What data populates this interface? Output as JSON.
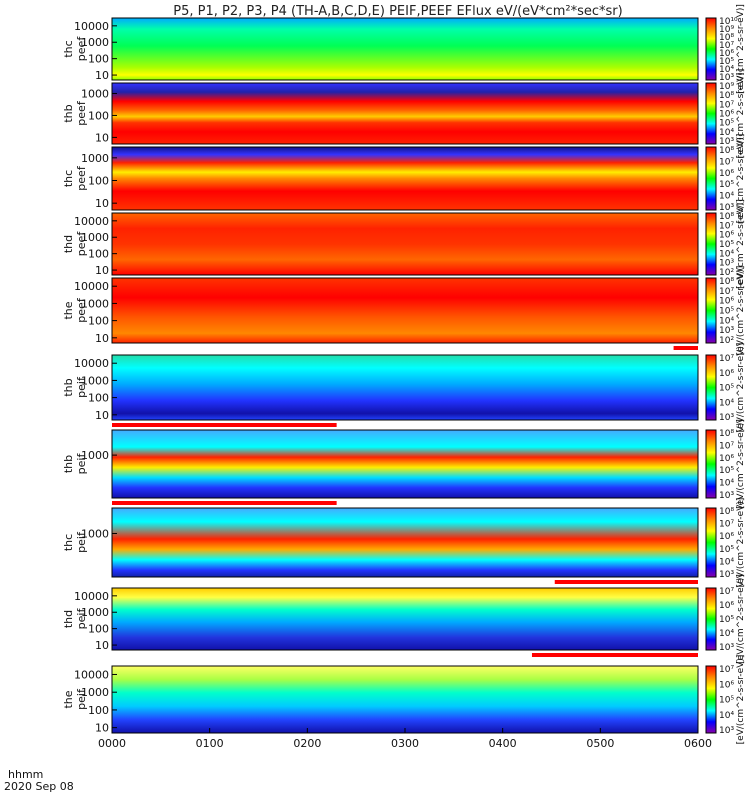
{
  "title": "P5, P1, P2, P3, P4 (TH-A,B,C,D,E) PEIF,PEEF EFlux eV/(eV*cm²*sec*sr)",
  "time_label": "hhmm",
  "date_label": "2020 Sep 08",
  "colors": {
    "state_bar": "#ff0000",
    "frame": "#000000"
  },
  "chart_data": {
    "type": "heatmap",
    "x_ticks": [
      "0000",
      "0100",
      "0200",
      "0300",
      "0400",
      "0500",
      "0600"
    ],
    "xlim": [
      "0000",
      "0600"
    ],
    "colorbar_palette": [
      "#8800aa",
      "#0000ff",
      "#00ffff",
      "#00ff00",
      "#ffff00",
      "#ff8800",
      "#ff0000"
    ],
    "panels": [
      {
        "name": "thc peef",
        "label_line1": "thc",
        "label_line2": "peef",
        "y_ticks": [
          "10",
          "100",
          "1000",
          "10000"
        ],
        "ylim": [
          5,
          30000
        ],
        "scale": "log",
        "colorbar_ticks": [
          "10³",
          "10⁴",
          "10⁵",
          "10⁶",
          "10⁷",
          "10⁸",
          "10⁹",
          "10¹⁰"
        ],
        "colorbar_label": "[eV/(cm^2-s-sr-eV)]",
        "state_bar": false
      },
      {
        "name": "thb peef",
        "label_line1": "thb",
        "label_line2": "peef",
        "y_ticks": [
          "10",
          "100",
          "1000"
        ],
        "ylim": [
          5,
          3000
        ],
        "scale": "log",
        "colorbar_ticks": [
          "10³",
          "10⁴",
          "10⁵",
          "10⁶",
          "10⁷",
          "10⁸",
          "10⁹"
        ],
        "colorbar_label": "[eV/(cm^2-s-sr-eV)]",
        "state_bar": false
      },
      {
        "name": "thc peef",
        "label_line1": "thc",
        "label_line2": "peef",
        "y_ticks": [
          "10",
          "100",
          "1000"
        ],
        "ylim": [
          5,
          3000
        ],
        "scale": "log",
        "colorbar_ticks": [
          "10³",
          "10⁴",
          "10⁵",
          "10⁶",
          "10⁷",
          "10⁸"
        ],
        "colorbar_label": "[eV/(cm^2-s-sr-eV)]",
        "state_bar": false
      },
      {
        "name": "thd peef",
        "label_line1": "thd",
        "label_line2": "peef",
        "y_ticks": [
          "10",
          "100",
          "1000",
          "10000"
        ],
        "ylim": [
          5,
          30000
        ],
        "scale": "log",
        "colorbar_ticks": [
          "10²",
          "10³",
          "10⁴",
          "10⁵",
          "10⁶",
          "10⁷",
          "10⁸"
        ],
        "colorbar_label": "[eV/(cm^2-s-sr-eV)]",
        "state_bar": false
      },
      {
        "name": "the peef",
        "label_line1": "the",
        "label_line2": "peef",
        "y_ticks": [
          "10",
          "100",
          "1000",
          "10000"
        ],
        "ylim": [
          5,
          30000
        ],
        "scale": "log",
        "colorbar_ticks": [
          "10²",
          "10³",
          "10⁴",
          "10⁵",
          "10⁶",
          "10⁷",
          "10⁸"
        ],
        "colorbar_label": "[eV/(cm^2-s-sr-eV)]",
        "state_bar": true,
        "state_bar_range": [
          "0545",
          "0600"
        ]
      },
      {
        "name": "thb peif",
        "label_line1": "thb",
        "label_line2": "peif",
        "y_ticks": [
          "10",
          "100",
          "1000",
          "10000"
        ],
        "ylim": [
          5,
          30000
        ],
        "scale": "log",
        "colorbar_ticks": [
          "10³",
          "10⁴",
          "10⁵",
          "10⁶",
          "10⁷"
        ],
        "colorbar_label": "[eV/(cm^2-s-sr-eV)]",
        "state_bar": true,
        "state_bar_range": [
          "0000",
          "0218"
        ]
      },
      {
        "name": "thb peif",
        "label_line1": "thb",
        "label_line2": "peif",
        "y_ticks": [
          "1000"
        ],
        "ylim": [
          3,
          30000
        ],
        "scale": "log",
        "colorbar_ticks": [
          "10³",
          "10⁴",
          "10⁵",
          "10⁶",
          "10⁷",
          "10⁸"
        ],
        "colorbar_label": "[eV/(cm^2-s-sr-eV)]",
        "state_bar": true,
        "state_bar_range": [
          "0000",
          "0218"
        ]
      },
      {
        "name": "thc peif",
        "label_line1": "thc",
        "label_line2": "peif",
        "y_ticks": [
          "1000"
        ],
        "ylim": [
          3,
          30000
        ],
        "scale": "log",
        "colorbar_ticks": [
          "10³",
          "10⁴",
          "10⁵",
          "10⁶",
          "10⁷",
          "10⁸"
        ],
        "colorbar_label": "[eV/(cm^2-s-sr-eV)]",
        "state_bar": true,
        "state_bar_range": [
          "0432",
          "0600"
        ]
      },
      {
        "name": "thd peif",
        "label_line1": "thd",
        "label_line2": "peif",
        "y_ticks": [
          "10",
          "100",
          "1000",
          "10000"
        ],
        "ylim": [
          5,
          30000
        ],
        "scale": "log",
        "colorbar_ticks": [
          "10³",
          "10⁴",
          "10⁵",
          "10⁶",
          "10⁷"
        ],
        "colorbar_label": "[eV/(cm^2-s-sr-eV)]",
        "state_bar": true,
        "state_bar_range": [
          "0418",
          "0600"
        ]
      },
      {
        "name": "the peif",
        "label_line1": "the",
        "label_line2": "peif",
        "y_ticks": [
          "10",
          "100",
          "1000",
          "10000"
        ],
        "ylim": [
          5,
          30000
        ],
        "scale": "log",
        "colorbar_ticks": [
          "10³",
          "10⁴",
          "10⁵",
          "10⁶",
          "10⁷"
        ],
        "colorbar_label": "[eV/(cm^2-s-sr-eV)]",
        "state_bar": false
      }
    ]
  }
}
